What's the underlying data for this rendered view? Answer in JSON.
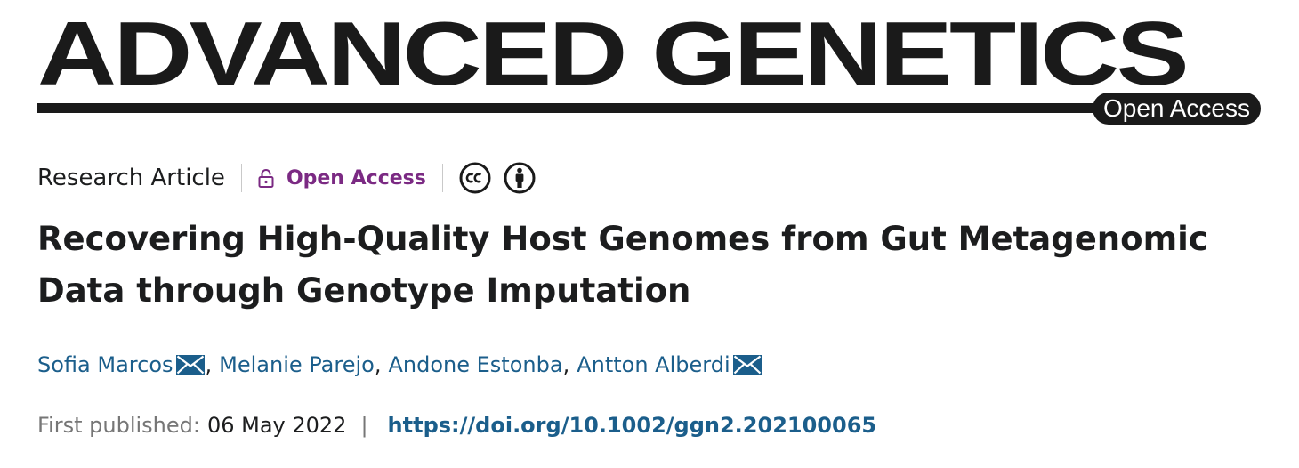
{
  "masthead": {
    "journal_title": "ADVANCED GENETICS",
    "open_access_pill": "Open Access"
  },
  "meta": {
    "article_type": "Research Article",
    "open_access_label": "Open Access",
    "license_icons": [
      "creative-commons-icon",
      "attribution-icon"
    ]
  },
  "article": {
    "title": "Recovering High-Quality Host Genomes from Gut Metagenomic Data through Genotype Imputation"
  },
  "authors": [
    {
      "name": "Sofia Marcos",
      "corresponding": true
    },
    {
      "name": "Melanie Parejo",
      "corresponding": false
    },
    {
      "name": "Andone Estonba",
      "corresponding": false
    },
    {
      "name": "Antton Alberdi",
      "corresponding": true
    }
  ],
  "publication": {
    "label": "First published:",
    "date": "06 May 2022",
    "separator": "|",
    "doi": "https://doi.org/10.1002/ggn2.202100065"
  },
  "colors": {
    "link": "#1b5e8b",
    "open_access_purple": "#7b2a83",
    "masthead_black": "#1a1a1a"
  }
}
